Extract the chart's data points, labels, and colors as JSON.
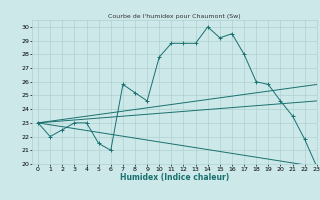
{
  "title": "Courbe de l'humidex pour Chaumont (Sw)",
  "xlabel": "Humidex (Indice chaleur)",
  "xlim": [
    -0.5,
    23
  ],
  "ylim": [
    20,
    30.5
  ],
  "xticks": [
    0,
    1,
    2,
    3,
    4,
    5,
    6,
    7,
    8,
    9,
    10,
    11,
    12,
    13,
    14,
    15,
    16,
    17,
    18,
    19,
    20,
    21,
    22,
    23
  ],
  "yticks": [
    20,
    21,
    22,
    23,
    24,
    25,
    26,
    27,
    28,
    29,
    30
  ],
  "bg_color": "#cce8e8",
  "grid_color": "#b0d0d0",
  "line_color": "#1a7070",
  "series1_x": [
    0,
    1,
    2,
    3,
    4,
    5,
    6,
    7,
    8,
    9,
    10,
    11,
    12,
    13,
    14,
    15,
    16,
    17,
    18,
    19,
    20,
    21,
    22,
    23
  ],
  "series1_y": [
    23.0,
    22.0,
    22.5,
    23.0,
    23.0,
    21.5,
    21.0,
    25.8,
    25.2,
    24.6,
    27.8,
    28.8,
    28.8,
    28.8,
    30.0,
    29.2,
    29.5,
    28.0,
    26.0,
    25.8,
    24.6,
    23.5,
    21.8,
    19.8
  ],
  "series2_x": [
    0,
    23
  ],
  "series2_y": [
    23.0,
    25.8
  ],
  "series3_x": [
    0,
    23
  ],
  "series3_y": [
    23.0,
    24.6
  ],
  "series4_x": [
    0,
    23
  ],
  "series4_y": [
    23.0,
    19.8
  ]
}
